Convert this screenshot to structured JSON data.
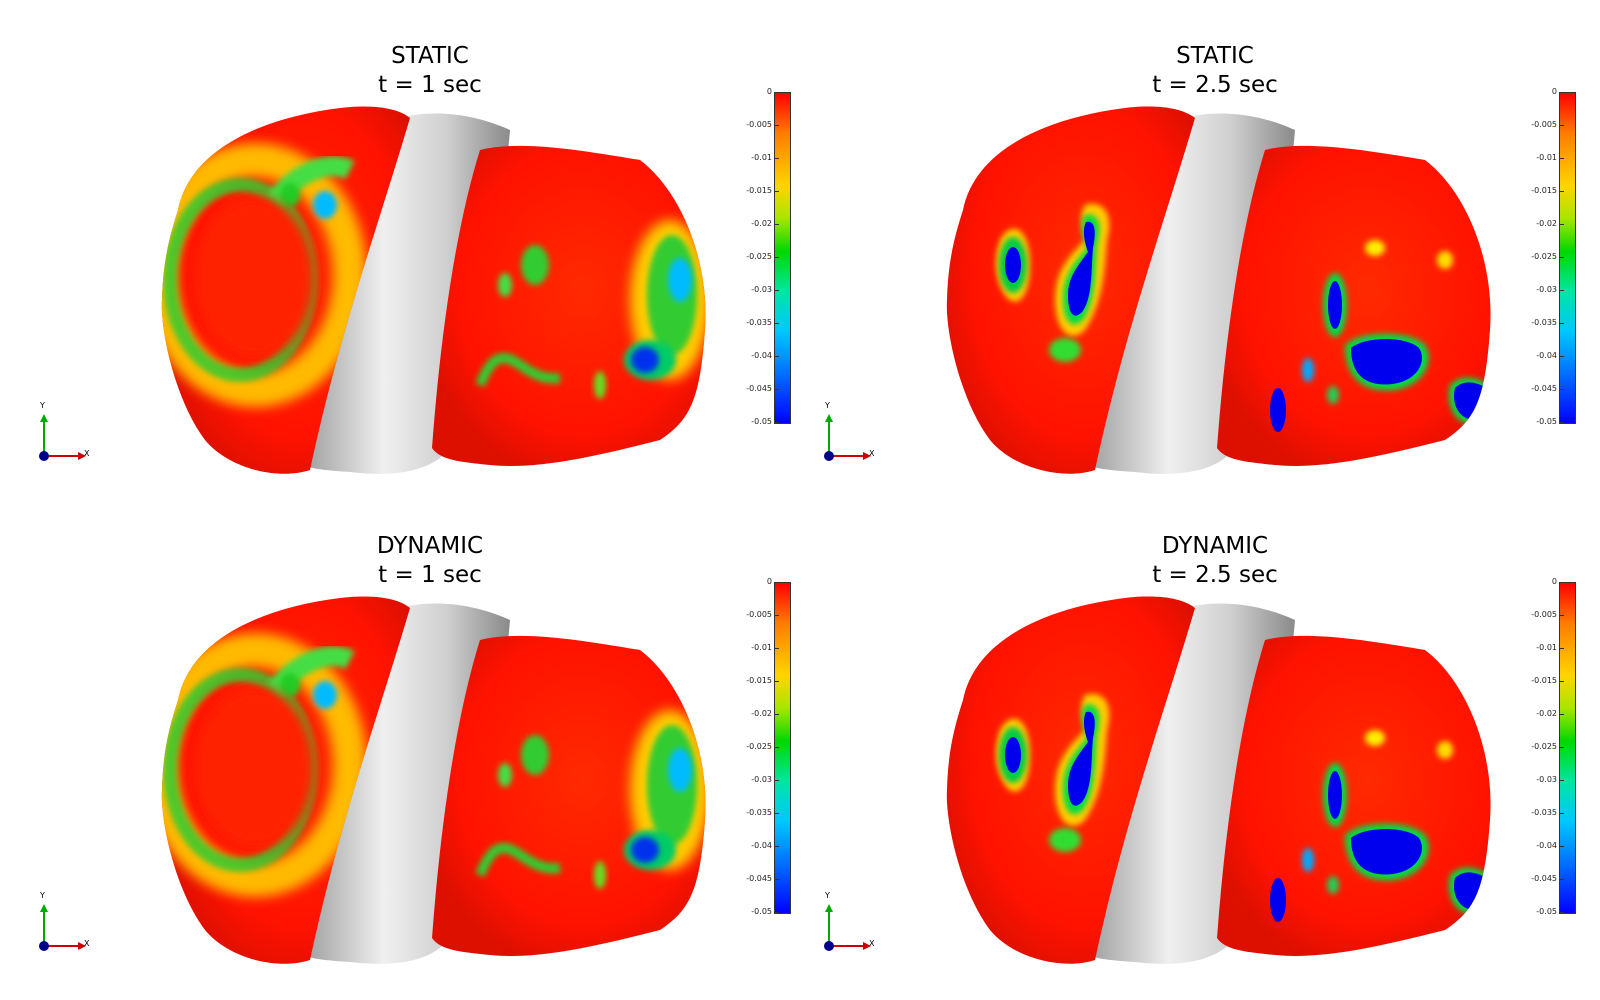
{
  "panels": [
    {
      "title_line1": "STATIC",
      "title_line2": "t = 1 sec"
    },
    {
      "title_line1": "STATIC",
      "title_line2": "t = 2.5 sec"
    },
    {
      "title_line1": "DYNAMIC",
      "title_line2": "t = 1 sec"
    },
    {
      "title_line1": "DYNAMIC",
      "title_line2": "t = 2.5 sec"
    }
  ],
  "colorbar": {
    "ticks": [
      "0",
      "-0.005",
      "-0.01",
      "-0.015",
      "-0.02",
      "-0.025",
      "-0.03",
      "-0.035",
      "-0.04",
      "-0.045",
      "-0.05"
    ],
    "colors": [
      "#ff0000",
      "#ff7a00",
      "#ffd400",
      "#00d800",
      "#00c8ff",
      "#0000ff"
    ]
  },
  "axes": {
    "y_label": "Y",
    "x_label": "X"
  },
  "colors": {
    "bone": "#d6d6d6",
    "surface": "#ff1a00",
    "hotspot_green": "#22cc22",
    "hotspot_blue": "#0000ff"
  }
}
